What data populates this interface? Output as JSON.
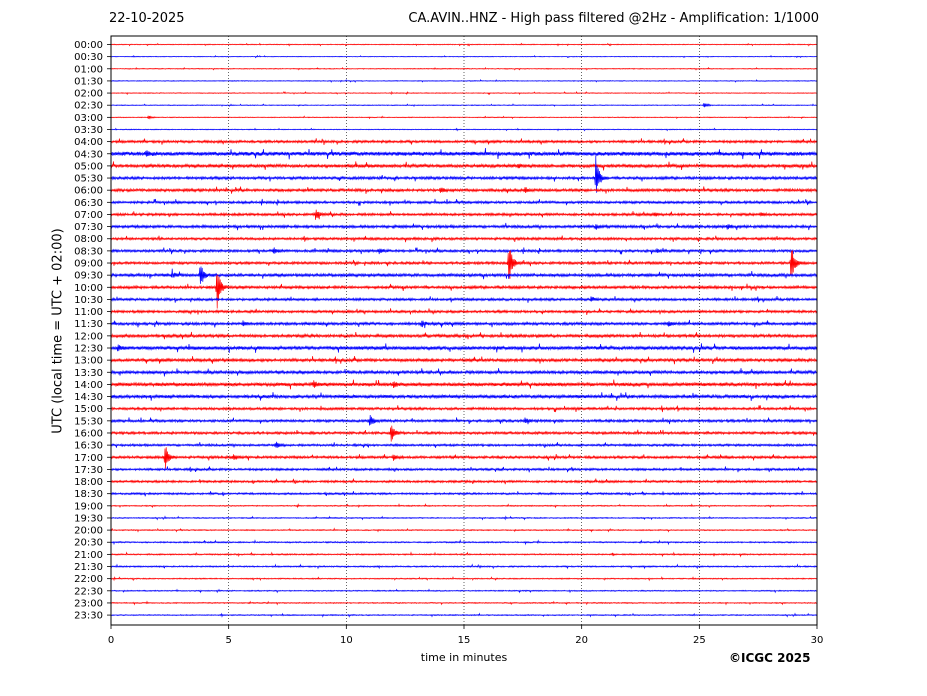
{
  "header": {
    "date": "22-10-2025",
    "title": "CA.AVIN..HNZ - High pass filtered @2Hz - Amplification: 1/1000"
  },
  "footer": {
    "copyright": "©ICGC 2025"
  },
  "colors": {
    "odd_rows": "#ff0000",
    "even_rows": "#0000ff",
    "grid": "#000000"
  },
  "chart_data": {
    "type": "line",
    "title": "CA.AVIN..HNZ - High pass filtered @2Hz - Amplification: 1/1000",
    "xlabel": "time in minutes",
    "ylabel": "UTC (local time = UTC + 02:00)",
    "xlim": [
      0,
      30
    ],
    "xticks": [
      "0",
      "5",
      "10",
      "15",
      "20",
      "25",
      "30"
    ],
    "grid": "vertical dotted at 5-minute intervals",
    "rows": [
      "00:00",
      "00:30",
      "01:00",
      "01:30",
      "02:00",
      "02:30",
      "03:00",
      "03:30",
      "04:00",
      "04:30",
      "05:00",
      "05:30",
      "06:00",
      "06:30",
      "07:00",
      "07:30",
      "08:00",
      "08:30",
      "09:00",
      "09:30",
      "10:00",
      "10:30",
      "11:00",
      "11:30",
      "12:00",
      "12:30",
      "13:00",
      "13:30",
      "14:00",
      "14:30",
      "15:00",
      "15:30",
      "16:00",
      "16:30",
      "17:00",
      "17:30",
      "18:00",
      "18:30",
      "19:00",
      "19:30",
      "20:00",
      "20:30",
      "21:00",
      "21:30",
      "22:00",
      "22:30",
      "23:00",
      "23:30"
    ],
    "noise": [
      0.3,
      0.25,
      0.3,
      0.3,
      0.3,
      0.3,
      0.3,
      0.3,
      0.9,
      1.5,
      1.2,
      1.0,
      1.0,
      0.9,
      0.9,
      1.0,
      0.9,
      0.9,
      0.9,
      1.1,
      1.0,
      0.9,
      0.9,
      1.0,
      1.1,
      1.3,
      1.1,
      1.1,
      1.3,
      1.2,
      0.9,
      0.9,
      0.9,
      0.8,
      0.9,
      0.8,
      0.8,
      0.7,
      0.4,
      0.4,
      0.4,
      0.5,
      0.5,
      0.5,
      0.4,
      0.4,
      0.4,
      0.4
    ],
    "events": [
      {
        "row": "02:30",
        "minute": 25.2,
        "amplitude": 3
      },
      {
        "row": "03:00",
        "minute": 1.6,
        "amplitude": 2
      },
      {
        "row": "04:30",
        "minute": 1.5,
        "amplitude": 3
      },
      {
        "row": "05:00",
        "minute": 17.3,
        "amplitude": 2
      },
      {
        "row": "05:30",
        "minute": 20.6,
        "amplitude": 22
      },
      {
        "row": "06:00",
        "minute": 14.0,
        "amplitude": 3
      },
      {
        "row": "06:00",
        "minute": 17.6,
        "amplitude": 3
      },
      {
        "row": "07:00",
        "minute": 8.7,
        "amplitude": 6
      },
      {
        "row": "07:00",
        "minute": 23.1,
        "amplitude": 2
      },
      {
        "row": "07:00",
        "minute": 27.6,
        "amplitude": 2
      },
      {
        "row": "07:30",
        "minute": 20.6,
        "amplitude": 3
      },
      {
        "row": "07:30",
        "minute": 26.2,
        "amplitude": 3
      },
      {
        "row": "08:30",
        "minute": 6.9,
        "amplitude": 4
      },
      {
        "row": "08:30",
        "minute": 11.4,
        "amplitude": 3
      },
      {
        "row": "08:30",
        "minute": 23.2,
        "amplitude": 2
      },
      {
        "row": "09:00",
        "minute": 16.9,
        "amplitude": 24
      },
      {
        "row": "09:00",
        "minute": 28.9,
        "amplitude": 24
      },
      {
        "row": "09:30",
        "minute": 2.6,
        "amplitude": 3
      },
      {
        "row": "09:30",
        "minute": 3.8,
        "amplitude": 14
      },
      {
        "row": "10:00",
        "minute": 4.5,
        "amplitude": 28
      },
      {
        "row": "10:30",
        "minute": 20.4,
        "amplitude": 3
      },
      {
        "row": "11:30",
        "minute": 5.6,
        "amplitude": 3
      },
      {
        "row": "11:30",
        "minute": 13.2,
        "amplitude": 4
      },
      {
        "row": "11:30",
        "minute": 23.7,
        "amplitude": 3
      },
      {
        "row": "12:30",
        "minute": 0.3,
        "amplitude": 3
      },
      {
        "row": "14:00",
        "minute": 8.6,
        "amplitude": 3
      },
      {
        "row": "14:00",
        "minute": 12.0,
        "amplitude": 3
      },
      {
        "row": "15:30",
        "minute": 11.0,
        "amplitude": 7
      },
      {
        "row": "15:30",
        "minute": 17.6,
        "amplitude": 3
      },
      {
        "row": "16:00",
        "minute": 11.9,
        "amplitude": 12
      },
      {
        "row": "16:30",
        "minute": 7.0,
        "amplitude": 4
      },
      {
        "row": "17:00",
        "minute": 2.3,
        "amplitude": 14
      },
      {
        "row": "17:00",
        "minute": 5.2,
        "amplitude": 3
      },
      {
        "row": "17:00",
        "minute": 12.0,
        "amplitude": 3
      }
    ]
  }
}
